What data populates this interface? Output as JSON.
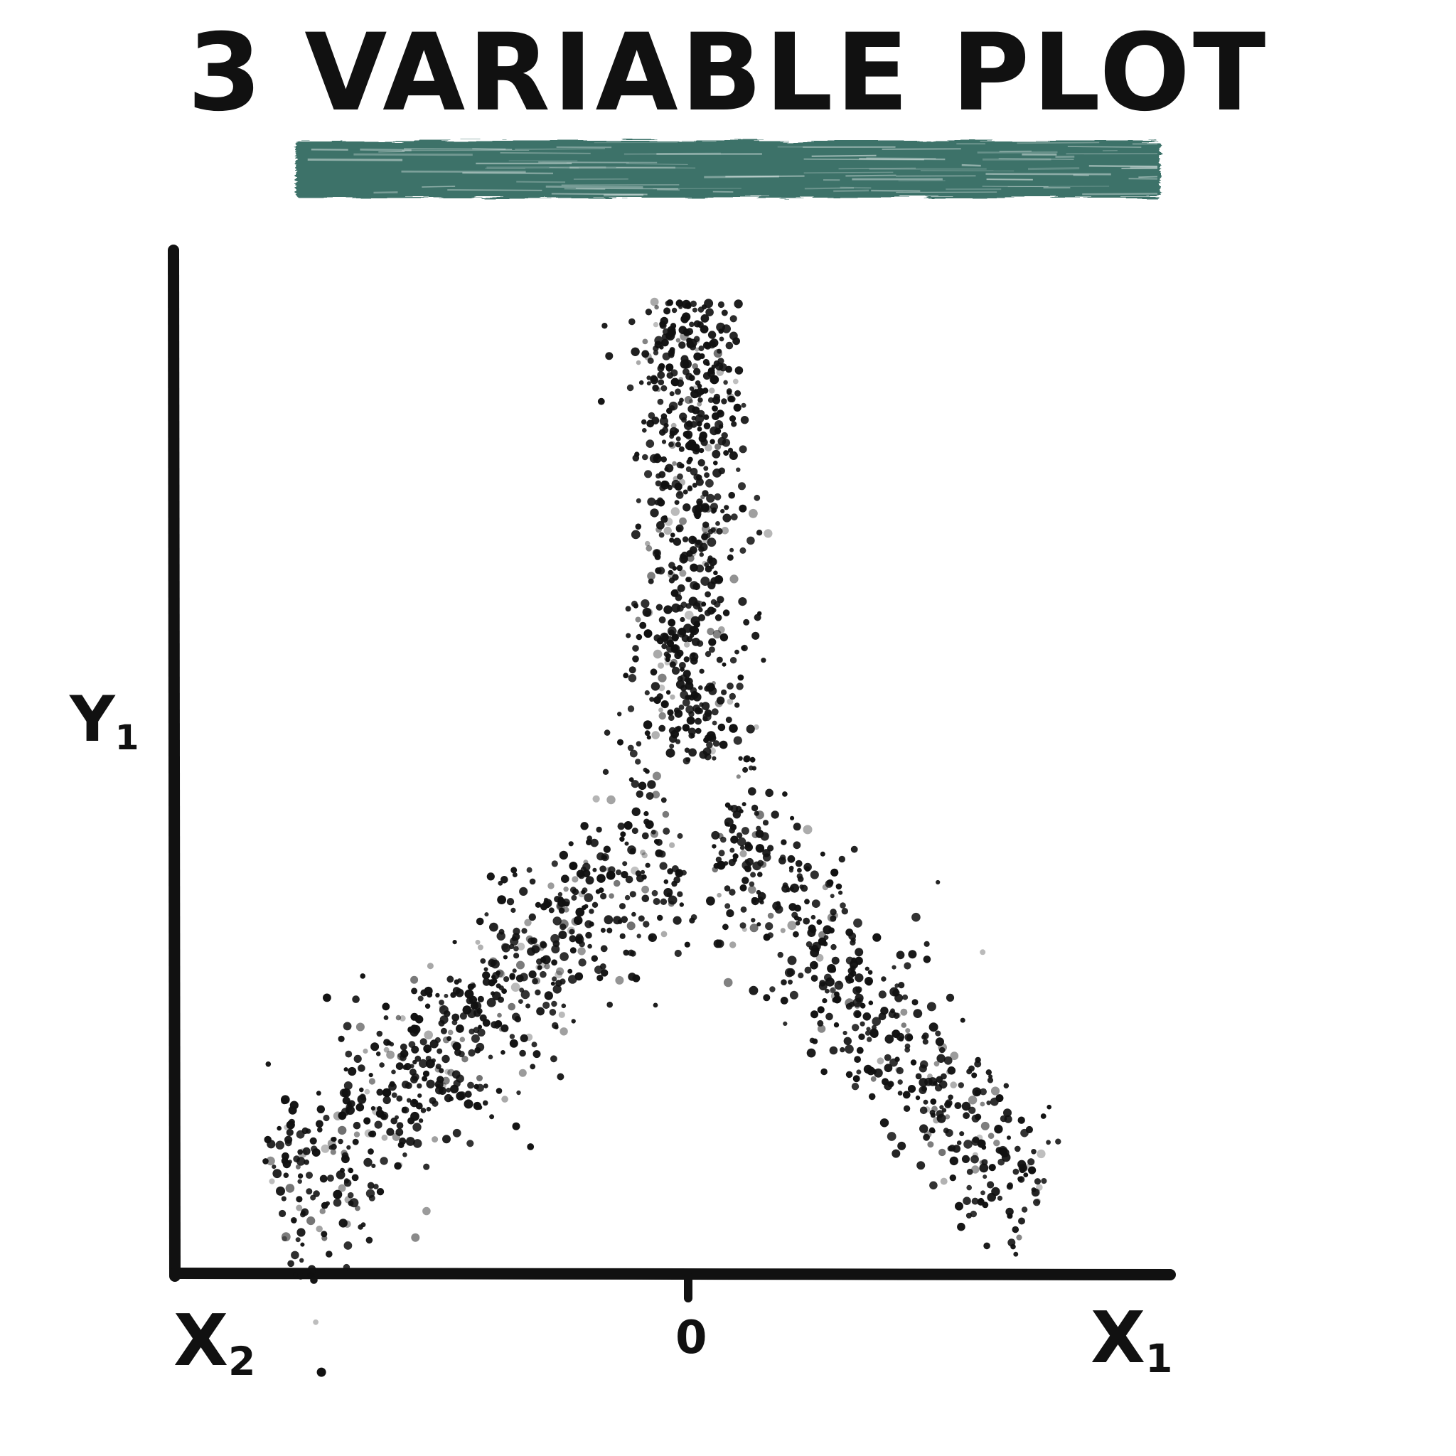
{
  "header": {
    "title": "3 VARIABLE PLOT",
    "underline_color": "#3d7269"
  },
  "chart_data": {
    "type": "scatter",
    "title": "3 VARIABLE PLOT",
    "ylabel": {
      "main": "Y",
      "sub": "1"
    },
    "x_left_label": {
      "main": "X",
      "sub": "2"
    },
    "x_right_label": {
      "main": "X",
      "sub": "1"
    },
    "x_ticks": [
      {
        "value": 0,
        "label": "0"
      }
    ],
    "xlim": [
      -1,
      1
    ],
    "ylim": [
      0,
      1
    ],
    "grid": false,
    "legend": "none",
    "point_color": "#111111",
    "series": [
      {
        "trend": {
          "x0": 0.0,
          "y0": 0.95,
          "x1": 0.0,
          "y1": 0.5
        },
        "spread": 0.055,
        "count": 650
      },
      {
        "trend": {
          "x0": -0.02,
          "y0": 0.44,
          "x1": -0.8,
          "y1": 0.06
        },
        "spread": 0.05,
        "count": 700
      },
      {
        "trend": {
          "x0": 0.06,
          "y0": 0.44,
          "x1": 0.68,
          "y1": 0.06
        },
        "spread": 0.045,
        "count": 520
      }
    ]
  }
}
